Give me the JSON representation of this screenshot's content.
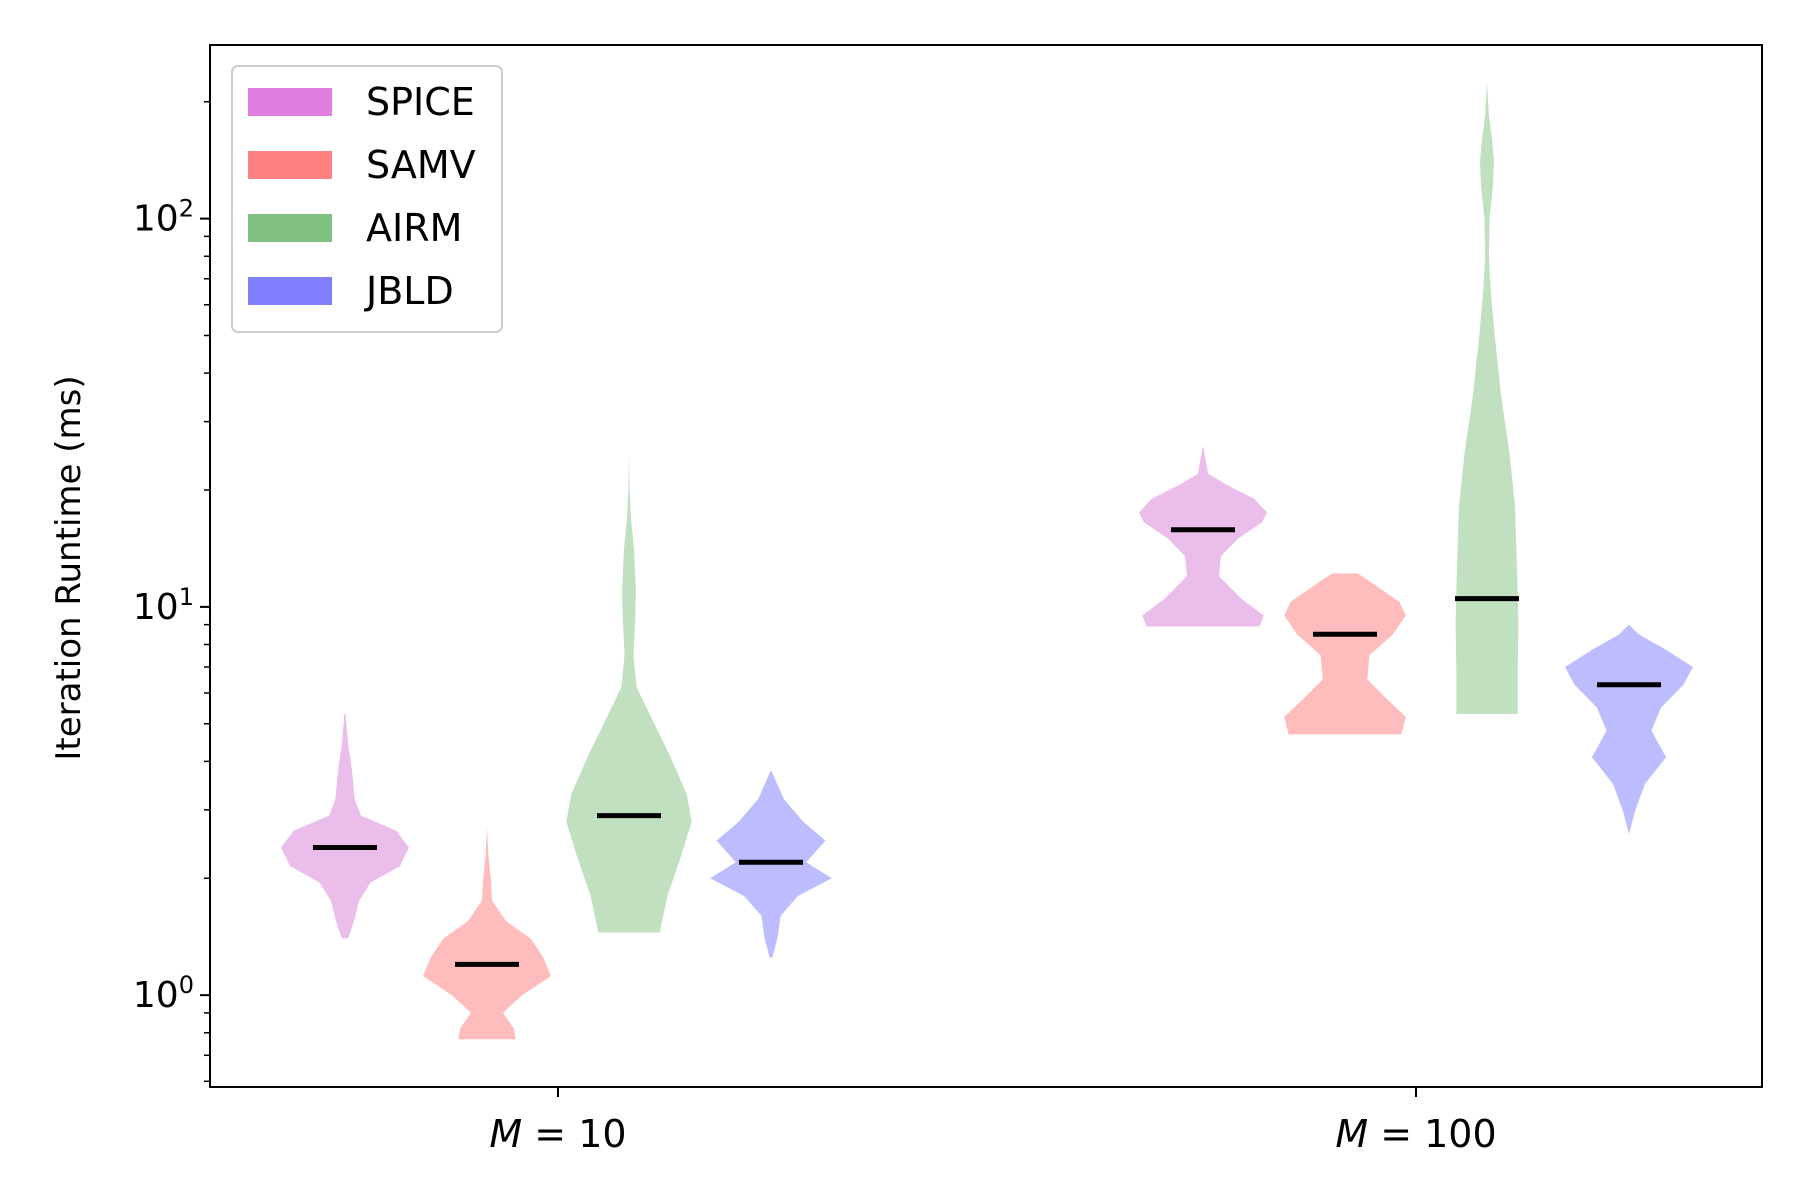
{
  "chart_data": {
    "type": "violin",
    "title": "",
    "xlabel": "",
    "ylabel": "Iteration Runtime (ms)",
    "yscale": "log",
    "ylim": [
      0.58,
      280
    ],
    "yticks": [
      {
        "value": 1,
        "base": "10",
        "exp": "0"
      },
      {
        "value": 10,
        "base": "10",
        "exp": "1"
      },
      {
        "value": 100,
        "base": "10",
        "exp": "2"
      }
    ],
    "categories": [
      {
        "var": "M",
        "eq": " = ",
        "val": "10"
      },
      {
        "var": "M",
        "eq": " = ",
        "val": "100"
      }
    ],
    "legend": {
      "position": "top-left"
    },
    "series": [
      {
        "name": "SPICE",
        "color": "#e07fe0",
        "fill": "#ebbdeb",
        "medians": [
          2.4,
          15.8
        ],
        "ranges": [
          [
            1.4,
            5.3
          ],
          [
            8.9,
            26
          ]
        ],
        "profiles": [
          [
            [
              1.4,
              0.05
            ],
            [
              1.55,
              0.14
            ],
            [
              1.75,
              0.22
            ],
            [
              1.95,
              0.4
            ],
            [
              2.15,
              0.86
            ],
            [
              2.4,
              1.0
            ],
            [
              2.65,
              0.8
            ],
            [
              2.9,
              0.25
            ],
            [
              3.2,
              0.15
            ],
            [
              3.5,
              0.13
            ],
            [
              3.9,
              0.1
            ],
            [
              4.4,
              0.05
            ],
            [
              5.3,
              0.01
            ]
          ],
          [
            [
              8.9,
              0.88
            ],
            [
              9.5,
              0.95
            ],
            [
              10.5,
              0.6
            ],
            [
              12,
              0.25
            ],
            [
              13.5,
              0.28
            ],
            [
              15,
              0.55
            ],
            [
              16.5,
              0.92
            ],
            [
              17.5,
              1.0
            ],
            [
              19,
              0.8
            ],
            [
              20.5,
              0.4
            ],
            [
              22,
              0.08
            ],
            [
              24,
              0.04
            ],
            [
              26,
              0.0
            ]
          ]
        ]
      },
      {
        "name": "SAMV",
        "color": "#ff8080",
        "fill": "#ffbcbc",
        "medians": [
          1.2,
          8.5
        ],
        "ranges": [
          [
            0.77,
            2.7
          ],
          [
            4.7,
            12.2
          ]
        ],
        "profiles": [
          [
            [
              0.77,
              0.45
            ],
            [
              0.82,
              0.42
            ],
            [
              0.9,
              0.25
            ],
            [
              1.0,
              0.55
            ],
            [
              1.12,
              1.0
            ],
            [
              1.25,
              0.88
            ],
            [
              1.4,
              0.68
            ],
            [
              1.55,
              0.3
            ],
            [
              1.75,
              0.08
            ],
            [
              2.0,
              0.06
            ],
            [
              2.3,
              0.02
            ],
            [
              2.7,
              0.0
            ]
          ],
          [
            [
              4.7,
              0.88
            ],
            [
              5.2,
              0.95
            ],
            [
              5.8,
              0.65
            ],
            [
              6.5,
              0.35
            ],
            [
              7.5,
              0.38
            ],
            [
              8.5,
              0.75
            ],
            [
              9.5,
              0.95
            ],
            [
              10.3,
              0.85
            ],
            [
              11.3,
              0.5
            ],
            [
              12.2,
              0.2
            ]
          ]
        ]
      },
      {
        "name": "AIRM",
        "color": "#80c080",
        "fill": "#c0e0c0",
        "medians": [
          2.9,
          10.5
        ],
        "ranges": [
          [
            1.45,
            25
          ],
          [
            5.3,
            225
          ]
        ],
        "profiles": [
          [
            [
              1.45,
              0.48
            ],
            [
              1.8,
              0.6
            ],
            [
              2.3,
              0.82
            ],
            [
              2.8,
              0.98
            ],
            [
              3.3,
              0.9
            ],
            [
              4.2,
              0.62
            ],
            [
              5.3,
              0.32
            ],
            [
              6.2,
              0.12
            ],
            [
              7.5,
              0.07
            ],
            [
              9.5,
              0.1
            ],
            [
              11,
              0.11
            ],
            [
              14,
              0.08
            ],
            [
              17,
              0.03
            ],
            [
              20,
              0.01
            ],
            [
              25,
              0.0
            ]
          ],
          [
            [
              5.3,
              0.48
            ],
            [
              7,
              0.48
            ],
            [
              9,
              0.49
            ],
            [
              11,
              0.48
            ],
            [
              14,
              0.46
            ],
            [
              18,
              0.44
            ],
            [
              25,
              0.35
            ],
            [
              35,
              0.22
            ],
            [
              50,
              0.12
            ],
            [
              65,
              0.06
            ],
            [
              80,
              0.03
            ],
            [
              100,
              0.04
            ],
            [
              120,
              0.09
            ],
            [
              140,
              0.11
            ],
            [
              160,
              0.08
            ],
            [
              185,
              0.03
            ],
            [
              225,
              0.0
            ]
          ]
        ]
      },
      {
        "name": "JBLD",
        "color": "#8080ff",
        "fill": "#bcbcff",
        "medians": [
          2.2,
          6.3
        ],
        "ranges": [
          [
            1.25,
            3.8
          ],
          [
            2.6,
            9
          ]
        ],
        "profiles": [
          [
            [
              1.25,
              0.02
            ],
            [
              1.4,
              0.1
            ],
            [
              1.6,
              0.15
            ],
            [
              1.8,
              0.42
            ],
            [
              2.0,
              0.95
            ],
            [
              2.2,
              0.55
            ],
            [
              2.5,
              0.85
            ],
            [
              2.8,
              0.5
            ],
            [
              3.2,
              0.2
            ],
            [
              3.8,
              0.0
            ]
          ],
          [
            [
              2.6,
              0.0
            ],
            [
              3.0,
              0.1
            ],
            [
              3.5,
              0.25
            ],
            [
              4.1,
              0.58
            ],
            [
              4.8,
              0.35
            ],
            [
              5.5,
              0.5
            ],
            [
              6.3,
              0.85
            ],
            [
              7.0,
              1.0
            ],
            [
              7.8,
              0.55
            ],
            [
              8.5,
              0.15
            ],
            [
              9.0,
              0.0
            ]
          ]
        ]
      }
    ]
  }
}
